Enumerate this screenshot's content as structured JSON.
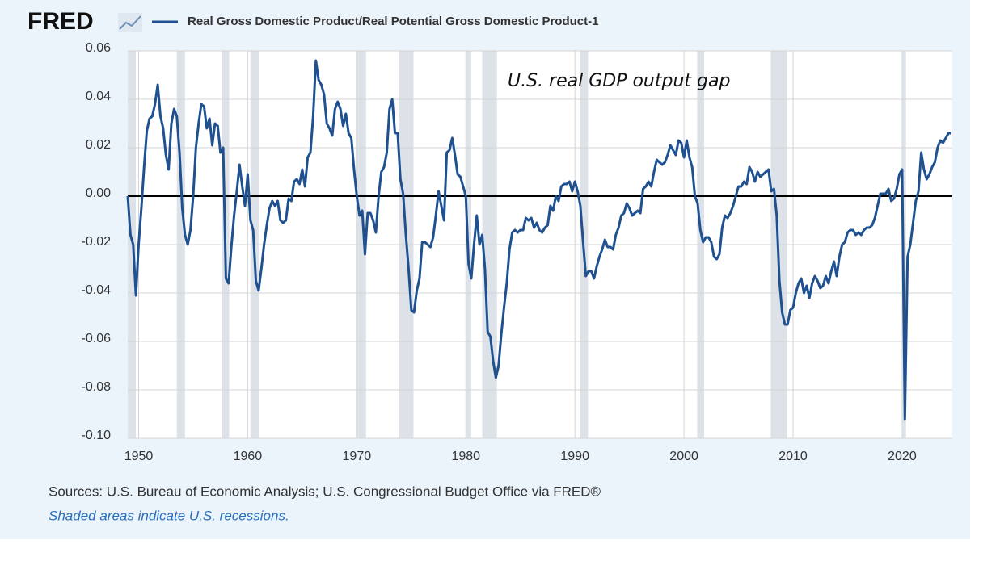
{
  "logo": "FRED",
  "sources": "Sources: U.S. Bureau of Economic Analysis; U.S. Congressional Budget Office via FRED®",
  "note": "Shaded areas indicate U.S. recessions.",
  "chart_data": {
    "type": "line",
    "annotation": "U.S. real GDP output gap",
    "x": [
      1949,
      1949.25,
      1949.5,
      1949.75,
      1950,
      1950.25,
      1950.5,
      1950.75,
      1951,
      1951.25,
      1951.5,
      1951.75,
      1952,
      1952.25,
      1952.5,
      1952.75,
      1953,
      1953.25,
      1953.5,
      1953.75,
      1954,
      1954.25,
      1954.5,
      1954.75,
      1955,
      1955.25,
      1955.5,
      1955.75,
      1956,
      1956.25,
      1956.5,
      1956.75,
      1957,
      1957.25,
      1957.5,
      1957.75,
      1958,
      1958.25,
      1958.5,
      1958.75,
      1959,
      1959.25,
      1959.5,
      1959.75,
      1960,
      1960.25,
      1960.5,
      1960.75,
      1961,
      1961.25,
      1961.5,
      1961.75,
      1962,
      1962.25,
      1962.5,
      1962.75,
      1963,
      1963.25,
      1963.5,
      1963.75,
      1964,
      1964.25,
      1964.5,
      1964.75,
      1965,
      1965.25,
      1965.5,
      1965.75,
      1966,
      1966.25,
      1966.5,
      1966.75,
      1967,
      1967.25,
      1967.5,
      1967.75,
      1968,
      1968.25,
      1968.5,
      1968.75,
      1969,
      1969.25,
      1969.5,
      1969.75,
      1970,
      1970.25,
      1970.5,
      1970.75,
      1971,
      1971.25,
      1971.5,
      1971.75,
      1972,
      1972.25,
      1972.5,
      1972.75,
      1973,
      1973.25,
      1973.5,
      1973.75,
      1974,
      1974.25,
      1974.5,
      1974.75,
      1975,
      1975.25,
      1975.5,
      1975.75,
      1976,
      1976.25,
      1976.5,
      1976.75,
      1977,
      1977.25,
      1977.5,
      1977.75,
      1978,
      1978.25,
      1978.5,
      1978.75,
      1979,
      1979.25,
      1979.5,
      1979.75,
      1980,
      1980.25,
      1980.5,
      1980.75,
      1981,
      1981.25,
      1981.5,
      1981.75,
      1982,
      1982.25,
      1982.5,
      1982.75,
      1983,
      1983.25,
      1983.5,
      1983.75,
      1984,
      1984.25,
      1984.5,
      1984.75,
      1985,
      1985.25,
      1985.5,
      1985.75,
      1986,
      1986.25,
      1986.5,
      1986.75,
      1987,
      1987.25,
      1987.5,
      1987.75,
      1988,
      1988.25,
      1988.5,
      1988.75,
      1989,
      1989.25,
      1989.5,
      1989.75,
      1990,
      1990.25,
      1990.5,
      1990.75,
      1991,
      1991.25,
      1991.5,
      1991.75,
      1992,
      1992.25,
      1992.5,
      1992.75,
      1993,
      1993.25,
      1993.5,
      1993.75,
      1994,
      1994.25,
      1994.5,
      1994.75,
      1995,
      1995.25,
      1995.5,
      1995.75,
      1996,
      1996.25,
      1996.5,
      1996.75,
      1997,
      1997.25,
      1997.5,
      1997.75,
      1998,
      1998.25,
      1998.5,
      1998.75,
      1999,
      1999.25,
      1999.5,
      1999.75,
      2000,
      2000.25,
      2000.5,
      2000.75,
      2001,
      2001.25,
      2001.5,
      2001.75,
      2002,
      2002.25,
      2002.5,
      2002.75,
      2003,
      2003.25,
      2003.5,
      2003.75,
      2004,
      2004.25,
      2004.5,
      2004.75,
      2005,
      2005.25,
      2005.5,
      2005.75,
      2006,
      2006.25,
      2006.5,
      2006.75,
      2007,
      2007.25,
      2007.5,
      2007.75,
      2008,
      2008.25,
      2008.5,
      2008.75,
      2009,
      2009.25,
      2009.5,
      2009.75,
      2010,
      2010.25,
      2010.5,
      2010.75,
      2011,
      2011.25,
      2011.5,
      2011.75,
      2012,
      2012.25,
      2012.5,
      2012.75,
      2013,
      2013.25,
      2013.5,
      2013.75,
      2014,
      2014.25,
      2014.5,
      2014.75,
      2015,
      2015.25,
      2015.5,
      2015.75,
      2016,
      2016.25,
      2016.5,
      2016.75,
      2017,
      2017.25,
      2017.5,
      2017.75,
      2018,
      2018.25,
      2018.5,
      2018.75,
      2019,
      2019.25,
      2019.5,
      2019.75,
      2020,
      2020.25,
      2020.5,
      2020.75,
      2021,
      2021.25,
      2021.5,
      2021.75,
      2022,
      2022.25,
      2022.5,
      2022.75,
      2023,
      2023.25,
      2023.5,
      2023.75,
      2024,
      2024.25,
      2024.5
    ],
    "series": [
      {
        "name": "Real Gross Domestic Product/Real Potential Gross Domestic Product-1",
        "color": "#1f5190",
        "values": [
          0,
          -0.016,
          -0.02,
          -0.041,
          -0.02,
          -0.005,
          0.012,
          0.027,
          0.032,
          0.033,
          0.038,
          0.046,
          0.033,
          0.028,
          0.017,
          0.011,
          0.03,
          0.036,
          0.033,
          0.018,
          -0.005,
          -0.016,
          -0.02,
          -0.014,
          0,
          0.02,
          0.03,
          0.038,
          0.037,
          0.028,
          0.032,
          0.021,
          0.03,
          0.029,
          0.018,
          0.02,
          -0.034,
          -0.036,
          -0.021,
          -0.008,
          0.002,
          0.013,
          0.004,
          -0.004,
          0.009,
          -0.01,
          -0.014,
          -0.035,
          -0.039,
          -0.03,
          -0.02,
          -0.012,
          -0.005,
          -0.002,
          -0.004,
          -0.002,
          -0.01,
          -0.011,
          -0.01,
          -0.001,
          -0.002,
          0.006,
          0.007,
          0.005,
          0.011,
          0.004,
          0.016,
          0.018,
          0.033,
          0.056,
          0.048,
          0.046,
          0.042,
          0.03,
          0.028,
          0.025,
          0.036,
          0.039,
          0.036,
          0.029,
          0.034,
          0.026,
          0.024,
          0.011,
          0,
          -0.008,
          -0.006,
          -0.024,
          -0.007,
          -0.007,
          -0.01,
          -0.015,
          0,
          0.01,
          0.012,
          0.018,
          0.036,
          0.04,
          0.026,
          0.026,
          0.007,
          0.001,
          -0.016,
          -0.03,
          -0.047,
          -0.048,
          -0.039,
          -0.034,
          -0.019,
          -0.019,
          -0.02,
          -0.021,
          -0.017,
          -0.008,
          0.002,
          -0.004,
          -0.01,
          0.018,
          0.019,
          0.024,
          0.017,
          0.009,
          0.008,
          0.004,
          0,
          -0.028,
          -0.034,
          -0.02,
          -0.008,
          -0.02,
          -0.016,
          -0.03,
          -0.056,
          -0.058,
          -0.068,
          -0.075,
          -0.07,
          -0.057,
          -0.046,
          -0.036,
          -0.022,
          -0.015,
          -0.014,
          -0.015,
          -0.014,
          -0.014,
          -0.009,
          -0.01,
          -0.009,
          -0.013,
          -0.011,
          -0.014,
          -0.015,
          -0.013,
          -0.012,
          -0.004,
          -0.006,
          0,
          -0.002,
          0.004,
          0.005,
          0.005,
          0.006,
          0.002,
          0.006,
          0.002,
          -0.004,
          -0.019,
          -0.033,
          -0.031,
          -0.031,
          -0.034,
          -0.029,
          -0.025,
          -0.022,
          -0.018,
          -0.021,
          -0.021,
          -0.022,
          -0.016,
          -0.013,
          -0.008,
          -0.007,
          -0.003,
          -0.005,
          -0.008,
          -0.007,
          -0.006,
          -0.007,
          0.003,
          0.004,
          0.006,
          0.004,
          0.01,
          0.015,
          0.014,
          0.013,
          0.014,
          0.017,
          0.021,
          0.019,
          0.017,
          0.023,
          0.022,
          0.016,
          0.023,
          0.016,
          0.012,
          0,
          -0.003,
          -0.014,
          -0.019,
          -0.017,
          -0.017,
          -0.019,
          -0.025,
          -0.026,
          -0.024,
          -0.013,
          -0.008,
          -0.009,
          -0.007,
          -0.004,
          0,
          0.004,
          0.004,
          0.006,
          0.005,
          0.012,
          0.01,
          0.006,
          0.01,
          0.008,
          0.009,
          0.01,
          0.011,
          0.002,
          0.003,
          -0.008,
          -0.035,
          -0.048,
          -0.053,
          -0.053,
          -0.047,
          -0.046,
          -0.04,
          -0.036,
          -0.034,
          -0.04,
          -0.037,
          -0.042,
          -0.036,
          -0.033,
          -0.035,
          -0.038,
          -0.037,
          -0.033,
          -0.036,
          -0.031,
          -0.027,
          -0.033,
          -0.025,
          -0.02,
          -0.019,
          -0.015,
          -0.014,
          -0.014,
          -0.016,
          -0.015,
          -0.016,
          -0.014,
          -0.013,
          -0.013,
          -0.012,
          -0.009,
          -0.004,
          0.001,
          0.001,
          0.001,
          0.003,
          -0.002,
          -0.001,
          0.003,
          0.009,
          0.011,
          -0.092,
          -0.025,
          -0.02,
          -0.011,
          -0.002,
          0.002,
          0.018,
          0.011,
          0.007,
          0.009,
          0.012,
          0.014,
          0.02,
          0.023,
          0.022,
          0.024,
          0.026,
          0.026
        ]
      }
    ],
    "recessions": [
      [
        1949,
        1949.75
      ],
      [
        1953.5,
        1954.25
      ],
      [
        1957.6,
        1958.3
      ],
      [
        1960.25,
        1961
      ],
      [
        1969.9,
        1970.85
      ],
      [
        1973.9,
        1975.2
      ],
      [
        1980,
        1980.5
      ],
      [
        1981.5,
        1982.85
      ],
      [
        1990.5,
        1991.2
      ],
      [
        2001.2,
        2001.85
      ],
      [
        2007.95,
        2009.45
      ],
      [
        2020.05,
        2020.35
      ]
    ],
    "xlim": [
      1949,
      2024.6
    ],
    "xticks": [
      1950,
      1960,
      1970,
      1980,
      1990,
      2000,
      2010,
      2020
    ],
    "ylim": [
      -0.1,
      0.06
    ],
    "yticks": [
      {
        "value": 0.06,
        "label": "0.06"
      },
      {
        "value": 0.04,
        "label": "0.04"
      },
      {
        "value": 0.02,
        "label": "0.02"
      },
      {
        "value": 0,
        "label": "0.00"
      },
      {
        "value": -0.02,
        "label": "-0.02"
      },
      {
        "value": -0.04,
        "label": "-0.04"
      },
      {
        "value": -0.06,
        "label": "-0.06"
      },
      {
        "value": -0.08,
        "label": "-0.08"
      },
      {
        "value": -0.1,
        "label": "-0.10"
      }
    ],
    "grid": true,
    "zero_line": true
  }
}
